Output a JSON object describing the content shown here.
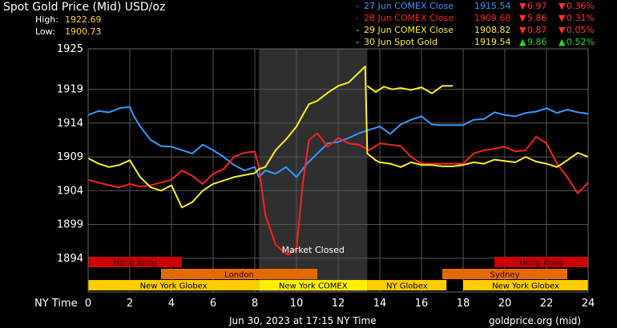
{
  "header": {
    "title": "Spot Gold Price (Mid) USD/oz",
    "high_label": "High:",
    "high_value": "1922.69",
    "low_label": "Low:",
    "low_value": "1900.73"
  },
  "legend": [
    {
      "dash": "-",
      "label": "27 Jun COMEX Close",
      "value": "1915.54",
      "arrow": "▼",
      "change": "6.97",
      "pct_arrow": "▼",
      "pct": "0.36%",
      "color": "#3399ff",
      "dir": "down"
    },
    {
      "dash": "-",
      "label": "28 Jun COMEX Close",
      "value": "1909.68",
      "arrow": "▼",
      "change": "5.86",
      "pct_arrow": "▼",
      "pct": "0.31%",
      "color": "#ff2020",
      "dir": "down"
    },
    {
      "dash": "-",
      "label": "29 Jun COMEX Close",
      "value": "1908.82",
      "arrow": "▼",
      "change": "0.87",
      "pct_arrow": "▼",
      "pct": "0.05%",
      "color": "#ffee22",
      "dir": "down"
    },
    {
      "dash": "-",
      "label": "30 Jun Spot Gold",
      "value": "1919.54",
      "arrow": "▲",
      "change": "9.86",
      "pct_arrow": "▲",
      "pct": "0.52%",
      "color": "#ffee22",
      "dir": "up"
    }
  ],
  "footer": {
    "timestamp": "Jun 30, 2023 at 17:15 NY Time",
    "source": "goldprice.org (mid)"
  },
  "chart_data": {
    "type": "line",
    "xlabel": "NY Time",
    "x_ticks": [
      "0",
      "2",
      "4",
      "6",
      "8",
      "10",
      "12",
      "14",
      "16",
      "18",
      "20",
      "22",
      "24"
    ],
    "y_ticks": [
      "1925",
      "1919",
      "1914",
      "1909",
      "1904",
      "1899",
      "1894"
    ],
    "xlim": [
      0,
      24
    ],
    "ylim": [
      1889,
      1925
    ],
    "grid": true,
    "shaded_region": {
      "label": "Market Closed",
      "x": [
        8.2,
        13.4
      ]
    },
    "sessions": [
      {
        "name": "Hong Kong",
        "start": 0,
        "end": 4.5,
        "row": 0,
        "color": "#cc0000"
      },
      {
        "name": "Hong Kong",
        "start": 19.5,
        "end": 24,
        "row": 0,
        "color": "#cc0000"
      },
      {
        "name": "London",
        "start": 3.5,
        "end": 11,
        "row": 1,
        "color": "#e46a00"
      },
      {
        "name": "Sydney",
        "start": 17,
        "end": 23,
        "row": 1,
        "color": "#e46a00"
      },
      {
        "name": "New York Globex",
        "start": 0,
        "end": 8.2,
        "row": 2,
        "color": "#ffcc00"
      },
      {
        "name": "New York COMEX",
        "start": 8.2,
        "end": 13.4,
        "row": 2,
        "color": "#ffee00"
      },
      {
        "name": "NY Globex",
        "start": 13.4,
        "end": 17.2,
        "row": 2,
        "color": "#ffcc00"
      },
      {
        "name": "New York Globex",
        "start": 18,
        "end": 24,
        "row": 2,
        "color": "#ffcc00"
      }
    ],
    "series": [
      {
        "name": "27 Jun COMEX Close",
        "color": "#3399ff",
        "x": [
          0,
          0.5,
          1,
          1.5,
          2,
          2.2,
          2.5,
          3,
          3.5,
          4,
          4.5,
          5,
          5.5,
          6,
          6.5,
          7,
          7.5,
          8,
          8.2,
          8.5,
          9,
          9.5,
          10,
          10.5,
          11,
          11.5,
          12,
          12.5,
          13,
          13.5,
          14,
          14.5,
          15,
          15.5,
          16,
          16.5,
          17,
          17.5,
          18,
          18.5,
          19,
          19.5,
          20,
          20.5,
          21,
          21.5,
          22,
          22.5,
          23,
          23.5,
          24
        ],
        "y": [
          1915.2,
          1915.8,
          1915.6,
          1916.2,
          1916.4,
          1915.0,
          1913.5,
          1911.5,
          1910.6,
          1910.5,
          1910.0,
          1909.5,
          1910.8,
          1910.0,
          1909.0,
          1907.8,
          1907.0,
          1907.5,
          1906.0,
          1907.0,
          1906.5,
          1907.5,
          1906.0,
          1908.0,
          1909.5,
          1911.0,
          1911.2,
          1911.8,
          1912.5,
          1913.0,
          1913.5,
          1912.4,
          1913.8,
          1914.5,
          1915.0,
          1913.8,
          1913.7,
          1913.7,
          1913.7,
          1914.5,
          1914.6,
          1915.6,
          1915.2,
          1915.0,
          1915.5,
          1915.7,
          1916.2,
          1915.5,
          1916.0,
          1915.6,
          1915.4
        ]
      },
      {
        "name": "28 Jun COMEX Close",
        "color": "#ff2020",
        "x": [
          0,
          0.5,
          1,
          1.5,
          2,
          2.5,
          3,
          3.5,
          4,
          4.5,
          5,
          5.5,
          6,
          6.5,
          7,
          7.5,
          8,
          8.2,
          8.5,
          8.8,
          9,
          9.3,
          9.6,
          10,
          10.3,
          10.6,
          11,
          11.5,
          12,
          12.5,
          13,
          13.5,
          14,
          14.5,
          15,
          15.5,
          16,
          16.5,
          17,
          17.5,
          18,
          18.5,
          19,
          19.5,
          20,
          20.5,
          21,
          21.5,
          22,
          22.5,
          23,
          23.5,
          24
        ],
        "y": [
          1905.6,
          1905.2,
          1904.8,
          1904.5,
          1905.0,
          1904.6,
          1904.8,
          1905.2,
          1905.6,
          1907.0,
          1906.2,
          1905.0,
          1906.5,
          1907.2,
          1909.0,
          1909.6,
          1909.8,
          1907.5,
          1900.5,
          1897.8,
          1896.0,
          1895.2,
          1894.5,
          1895.5,
          1905.0,
          1911.5,
          1912.5,
          1910.5,
          1911.8,
          1911.0,
          1910.8,
          1910.0,
          1911.0,
          1910.8,
          1910.6,
          1909.0,
          1908.0,
          1908.0,
          1908.0,
          1908.0,
          1908.0,
          1909.5,
          1910.0,
          1910.2,
          1910.5,
          1909.8,
          1910.0,
          1912.0,
          1911.0,
          1908.0,
          1906.0,
          1903.6,
          1905.2
        ]
      },
      {
        "name": "29 Jun COMEX Close",
        "color": "#ffee22",
        "x": [
          0,
          0.5,
          1,
          1.5,
          2,
          2.5,
          3,
          3.5,
          4,
          4.5,
          5,
          5.5,
          6,
          6.5,
          7,
          7.5,
          8,
          8.2,
          8.5,
          9,
          9.5,
          10,
          10.3,
          10.6,
          11,
          11.5,
          12,
          12.5,
          13,
          13.3,
          13.4,
          13.8,
          14,
          14.5,
          15,
          15.5,
          16,
          16.5,
          17,
          17.5,
          18,
          18.5,
          19,
          19.5,
          20,
          20.5,
          21,
          21.5,
          22,
          22.5,
          23,
          23.5,
          24
        ],
        "y": [
          1908.8,
          1908.0,
          1907.5,
          1907.8,
          1908.5,
          1906.0,
          1904.5,
          1904.0,
          1904.8,
          1901.5,
          1902.3,
          1904.0,
          1905.0,
          1905.5,
          1906.0,
          1906.3,
          1906.6,
          1907.2,
          1907.5,
          1910.0,
          1911.6,
          1913.5,
          1915.2,
          1916.8,
          1917.3,
          1918.5,
          1919.5,
          1920.0,
          1921.5,
          1922.4,
          1909.5,
          1908.5,
          1908.2,
          1908.0,
          1907.5,
          1908.2,
          1907.8,
          1907.8,
          1907.6,
          1907.6,
          1907.8,
          1908.2,
          1908.0,
          1908.6,
          1908.4,
          1908.2,
          1909.0,
          1908.3,
          1908.0,
          1907.5,
          1908.5,
          1909.6,
          1909.0
        ]
      },
      {
        "name": "30 Jun Spot Gold",
        "color": "#ffee22",
        "x": [
          13.4,
          13.8,
          14.2,
          14.6,
          15,
          15.5,
          16,
          16.5,
          17,
          17.5
        ],
        "y": [
          1919.5,
          1918.6,
          1919.4,
          1919.0,
          1919.2,
          1918.9,
          1919.3,
          1918.4,
          1919.5,
          1919.5
        ]
      }
    ]
  }
}
